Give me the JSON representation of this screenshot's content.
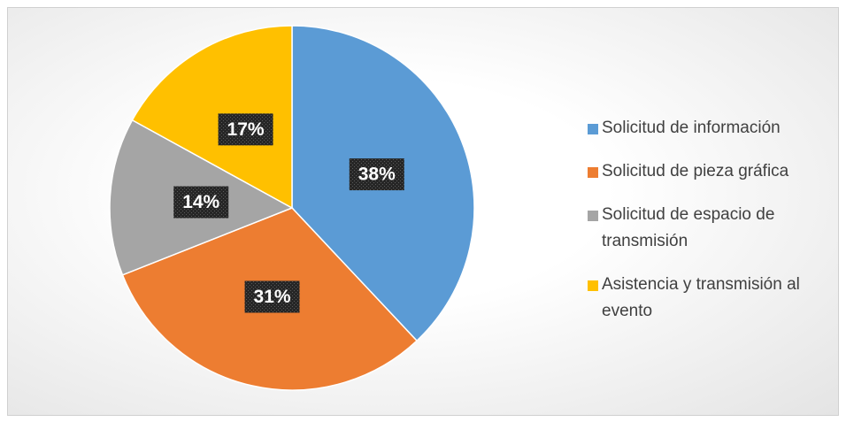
{
  "chart_data": {
    "type": "pie",
    "categories": [
      "Solicitud de información",
      "Solicitud de pieza gráfica",
      "Solicitud de espacio de transmisión",
      "Asistencia y transmisión al evento"
    ],
    "values": [
      38,
      31,
      14,
      17
    ],
    "value_labels": [
      "38%",
      "31%",
      "14%",
      "17%"
    ],
    "colors": [
      "#5b9bd5",
      "#ed7d31",
      "#a5a5a5",
      "#ffc000"
    ],
    "legend": "right"
  }
}
